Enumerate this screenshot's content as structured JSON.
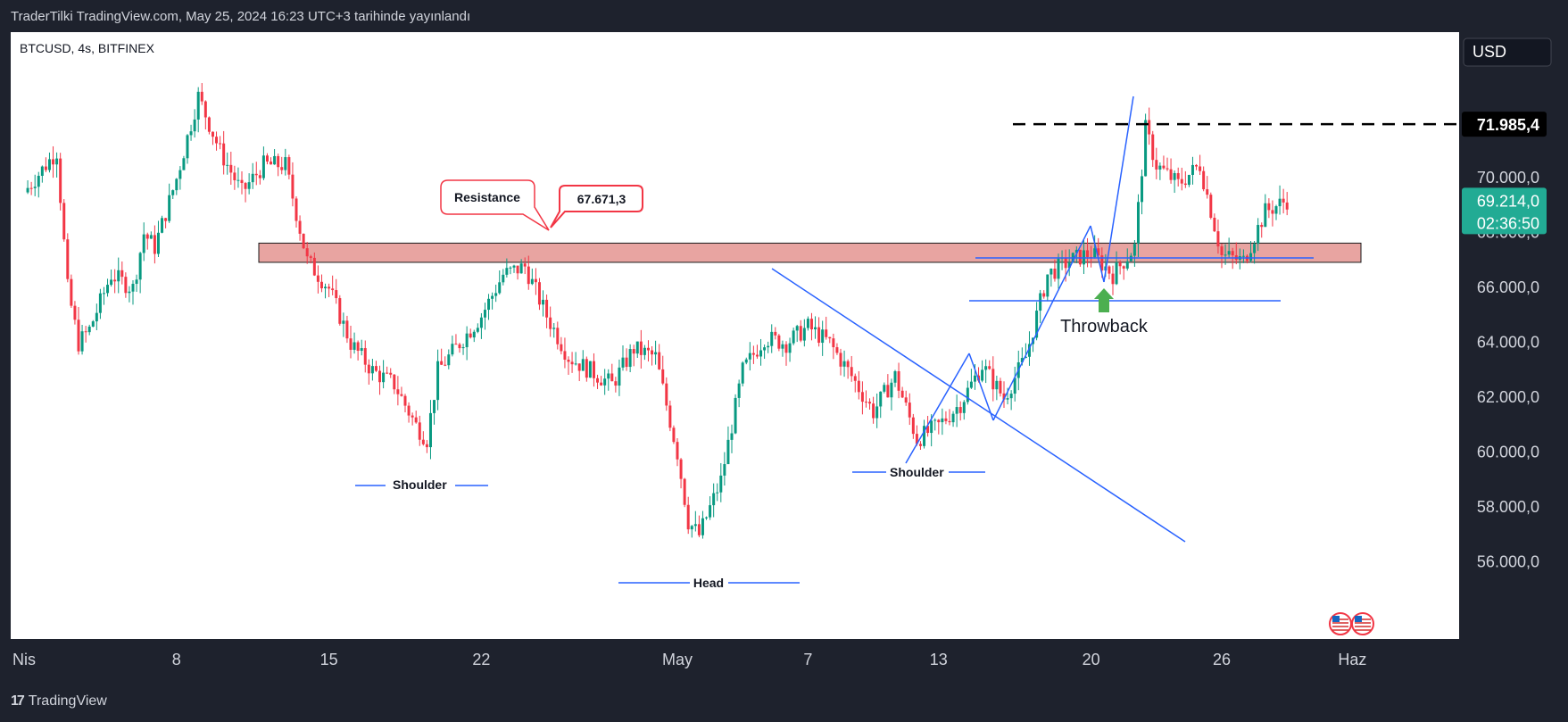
{
  "header": {
    "publisher_line": "TraderTilki TradingView.com, May 25, 2024 16:23 UTC+3 tarihinde yayınlandı"
  },
  "symbol_info": "BTCUSD, 4s, BITFINEX",
  "currency_button": "USD",
  "footer": {
    "brand": "TradingView",
    "logo_mark": "17"
  },
  "chart_data": {
    "type": "candlestick",
    "symbol": "BTCUSD",
    "timeframe": "4s",
    "exchange": "BITFINEX",
    "ylim": [
      55000,
      74000
    ],
    "y_ticks": [
      "70.000,0",
      "68.000,0",
      "66.000,0",
      "64.000,0",
      "62.000,0",
      "60.000,0",
      "58.000,0",
      "56.000,0"
    ],
    "y_tick_values": [
      70000,
      68000,
      66000,
      64000,
      62000,
      60000,
      58000,
      56000
    ],
    "x_ticks": [
      {
        "label": "Nis",
        "day": 0
      },
      {
        "label": "8",
        "day": 7
      },
      {
        "label": "15",
        "day": 14
      },
      {
        "label": "22",
        "day": 21
      },
      {
        "label": "May",
        "day": 30
      },
      {
        "label": "7",
        "day": 36
      },
      {
        "label": "13",
        "day": 42
      },
      {
        "label": "20",
        "day": 49
      },
      {
        "label": "26",
        "day": 55
      },
      {
        "label": "Haz",
        "day": 61
      }
    ],
    "price_path": [
      [
        0,
        69500
      ],
      [
        1.5,
        71000
      ],
      [
        2,
        66000
      ],
      [
        2.5,
        64000
      ],
      [
        3,
        64500
      ],
      [
        4,
        66500
      ],
      [
        5,
        66000
      ],
      [
        5.5,
        68000
      ],
      [
        6,
        67500
      ],
      [
        7,
        70000
      ],
      [
        8,
        73000
      ],
      [
        9,
        71000
      ],
      [
        10,
        69500
      ],
      [
        11,
        70500
      ],
      [
        12,
        70500
      ],
      [
        13,
        67000
      ],
      [
        14,
        66000
      ],
      [
        15,
        64000
      ],
      [
        16,
        63000
      ],
      [
        17,
        62500
      ],
      [
        18,
        61000
      ],
      [
        18.5,
        60500
      ],
      [
        19,
        63000
      ],
      [
        20,
        64000
      ],
      [
        21,
        65000
      ],
      [
        22,
        66500
      ],
      [
        23,
        66800
      ],
      [
        24,
        65000
      ],
      [
        25,
        63500
      ],
      [
        26,
        63000
      ],
      [
        27,
        62500
      ],
      [
        28,
        63800
      ],
      [
        29,
        63500
      ],
      [
        30,
        60000
      ],
      [
        30.5,
        57500
      ],
      [
        31,
        57000
      ],
      [
        32,
        59000
      ],
      [
        33,
        63000
      ],
      [
        34,
        64200
      ],
      [
        35,
        64000
      ],
      [
        36,
        64600
      ],
      [
        37,
        64000
      ],
      [
        38,
        62800
      ],
      [
        39,
        61500
      ],
      [
        40,
        62800
      ],
      [
        41,
        60500
      ],
      [
        42,
        61000
      ],
      [
        43,
        61800
      ],
      [
        44,
        63200
      ],
      [
        45,
        62000
      ],
      [
        46,
        63500
      ],
      [
        47,
        66500
      ],
      [
        48,
        67000
      ],
      [
        49,
        67300
      ],
      [
        50,
        66500
      ],
      [
        51,
        67500
      ],
      [
        51.5,
        71800
      ],
      [
        52,
        70500
      ],
      [
        53,
        69800
      ],
      [
        54,
        70500
      ],
      [
        55,
        67200
      ],
      [
        56,
        67000
      ],
      [
        57,
        68800
      ],
      [
        58,
        69214
      ]
    ],
    "resistance_zone": [
      66950,
      67650
    ],
    "price_labels": [
      {
        "label": "71.985,4",
        "price": 71985.4,
        "type": "high"
      },
      {
        "label": "69.214,0",
        "price": 69214,
        "type": "last"
      },
      {
        "label": "02:36:50",
        "type": "countdown"
      }
    ],
    "annotations": [
      {
        "text": "Resistance",
        "type": "callout"
      },
      {
        "text": "67.671,3",
        "type": "price-callout"
      },
      {
        "text": "Shoulder",
        "type": "left-shoulder"
      },
      {
        "text": "Head",
        "type": "head"
      },
      {
        "text": "Shoulder",
        "type": "right-shoulder"
      },
      {
        "text": "Throwback",
        "type": "note"
      }
    ],
    "colors": {
      "up": "#089981",
      "down": "#f23645",
      "zone_fill": "#e8a4a1",
      "zone_border": "#1a1a1a",
      "annotation_line": "#2962ff",
      "throwback_arrow": "#4caf50",
      "last_price_bg": "#22ab94",
      "callout_border": "#f23645",
      "axis_bg": "#131722"
    }
  }
}
